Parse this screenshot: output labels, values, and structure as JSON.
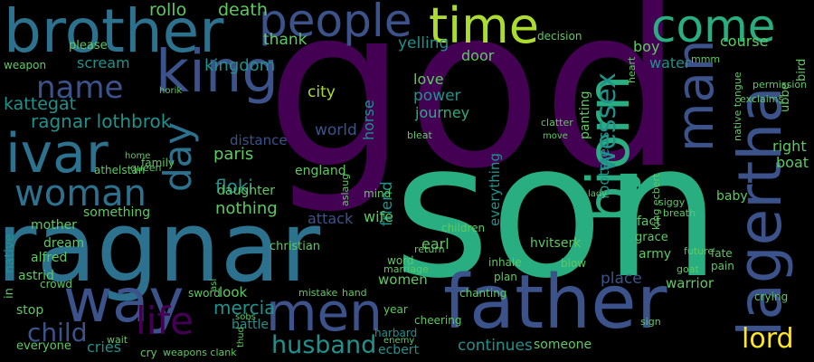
{
  "palette": {
    "background": "#000000",
    "purple": "#440154",
    "indigo": "#3b528b",
    "blue": "#2c728e",
    "teal": "#21918c",
    "green": "#28ae80",
    "lightgreen": "#5ec962",
    "yellowgreen": "#addc30",
    "yellow": "#fde725"
  },
  "words": [
    {
      "text": "god",
      "color": "purple"
    },
    {
      "text": "son",
      "color": "green"
    },
    {
      "text": "ragnar",
      "color": "blue"
    },
    {
      "text": "father",
      "color": "indigo"
    },
    {
      "text": "brother",
      "color": "blue"
    },
    {
      "text": "king",
      "color": "indigo"
    },
    {
      "text": "time",
      "color": "yellowgreen"
    },
    {
      "text": "people",
      "color": "indigo"
    },
    {
      "text": "come",
      "color": "green"
    },
    {
      "text": "ivar",
      "color": "blue"
    },
    {
      "text": "man",
      "color": "indigo"
    },
    {
      "text": "bjorn",
      "color": "green"
    },
    {
      "text": "lagertha",
      "color": "indigo"
    },
    {
      "text": "way",
      "color": "indigo"
    },
    {
      "text": "men",
      "color": "indigo"
    },
    {
      "text": "woman",
      "color": "blue"
    },
    {
      "text": "day",
      "color": "blue"
    },
    {
      "text": "name",
      "color": "indigo"
    },
    {
      "text": "life",
      "color": "purple"
    },
    {
      "text": "husband",
      "color": "teal"
    },
    {
      "text": "lord",
      "color": "yellow"
    },
    {
      "text": "wessex",
      "color": "teal"
    },
    {
      "text": "child",
      "color": "indigo"
    },
    {
      "text": "mercia",
      "color": "teal"
    },
    {
      "text": "floki",
      "color": "teal"
    },
    {
      "text": "ragnar lothbrok",
      "color": "teal"
    },
    {
      "text": "kattegat",
      "color": "teal"
    },
    {
      "text": "nothing",
      "color": "lightgreen"
    },
    {
      "text": "paris",
      "color": "lightgreen"
    },
    {
      "text": "kingdom",
      "color": "teal"
    },
    {
      "text": "world",
      "color": "indigo"
    },
    {
      "text": "city",
      "color": "yellowgreen"
    },
    {
      "text": "death",
      "color": "lightgreen"
    },
    {
      "text": "rollo",
      "color": "lightgreen"
    },
    {
      "text": "thank",
      "color": "lightgreen"
    },
    {
      "text": "yelling",
      "color": "teal"
    },
    {
      "text": "power",
      "color": "teal"
    },
    {
      "text": "love",
      "color": "lightgreen"
    },
    {
      "text": "journey",
      "color": "green"
    },
    {
      "text": "scream",
      "color": "teal"
    },
    {
      "text": "door",
      "color": "lightgreen"
    },
    {
      "text": "water",
      "color": "teal"
    },
    {
      "text": "boy",
      "color": "lightgreen"
    },
    {
      "text": "course",
      "color": "lightgreen"
    },
    {
      "text": "right",
      "color": "lightgreen"
    },
    {
      "text": "boat",
      "color": "lightgreen"
    },
    {
      "text": "friend",
      "color": "teal"
    },
    {
      "text": "horse",
      "color": "teal"
    },
    {
      "text": "footsteps",
      "color": "teal"
    },
    {
      "text": "attack",
      "color": "indigo"
    },
    {
      "text": "wife",
      "color": "lightgreen"
    },
    {
      "text": "everything",
      "color": "teal"
    },
    {
      "text": "distance",
      "color": "indigo"
    },
    {
      "text": "england",
      "color": "lightgreen"
    },
    {
      "text": "family",
      "color": "lightgreen"
    },
    {
      "text": "daughter",
      "color": "lightgreen"
    },
    {
      "text": "mother",
      "color": "lightgreen"
    },
    {
      "text": "something",
      "color": "lightgreen"
    },
    {
      "text": "earl",
      "color": "lightgreen"
    },
    {
      "text": "dream",
      "color": "lightgreen"
    },
    {
      "text": "alfred",
      "color": "lightgreen"
    },
    {
      "text": "astrid",
      "color": "lightgreen"
    },
    {
      "text": "native",
      "color": "teal"
    },
    {
      "text": "christian",
      "color": "lightgreen"
    },
    {
      "text": "women",
      "color": "lightgreen"
    },
    {
      "text": "place",
      "color": "indigo"
    },
    {
      "text": "warrior",
      "color": "lightgreen"
    },
    {
      "text": "army",
      "color": "lightgreen"
    },
    {
      "text": "fact",
      "color": "lightgreen"
    },
    {
      "text": "baby",
      "color": "lightgreen"
    },
    {
      "text": "panting",
      "color": "lightgreen"
    },
    {
      "text": "hvitserk",
      "color": "lightgreen"
    },
    {
      "text": "grace",
      "color": "lightgreen"
    },
    {
      "text": "continues",
      "color": "teal"
    },
    {
      "text": "someone",
      "color": "lightgreen"
    },
    {
      "text": "cries",
      "color": "teal"
    },
    {
      "text": "everyone",
      "color": "lightgreen"
    },
    {
      "text": "look",
      "color": "lightgreen"
    },
    {
      "text": "battle",
      "color": "teal"
    },
    {
      "text": "stop",
      "color": "lightgreen"
    },
    {
      "text": "sword",
      "color": "lightgreen"
    },
    {
      "text": "ecbert",
      "color": "teal"
    },
    {
      "text": "harbard",
      "color": "teal"
    },
    {
      "text": "crying",
      "color": "lightgreen"
    },
    {
      "text": "fate",
      "color": "lightgreen"
    },
    {
      "text": "pain",
      "color": "lightgreen"
    },
    {
      "text": "ubbe",
      "color": "lightgreen"
    },
    {
      "text": "bird",
      "color": "lightgreen"
    },
    {
      "text": "athelstan",
      "color": "lightgreen"
    },
    {
      "text": "please",
      "color": "lightgreen"
    },
    {
      "text": "weapon",
      "color": "lightgreen"
    },
    {
      "text": "horik",
      "color": "lightgreen"
    },
    {
      "text": "mmm",
      "color": "lightgreen"
    },
    {
      "text": "decision",
      "color": "lightgreen"
    },
    {
      "text": "heart",
      "color": "lightgreen"
    },
    {
      "text": "inhale",
      "color": "lightgreen"
    },
    {
      "text": "blow",
      "color": "lightgreen"
    },
    {
      "text": "plan",
      "color": "lightgreen"
    },
    {
      "text": "word",
      "color": "lightgreen"
    },
    {
      "text": "marriage",
      "color": "lightgreen"
    },
    {
      "text": "cheering",
      "color": "lightgreen"
    },
    {
      "text": "year",
      "color": "lightgreen"
    },
    {
      "text": "children",
      "color": "lightgreen"
    },
    {
      "text": "goat",
      "color": "lightgreen"
    },
    {
      "text": "future",
      "color": "lightgreen"
    },
    {
      "text": "siggy",
      "color": "lightgreen"
    },
    {
      "text": "breath",
      "color": "lightgreen"
    },
    {
      "text": "sign",
      "color": "lightgreen"
    },
    {
      "text": "crowd",
      "color": "lightgreen"
    },
    {
      "text": "queen",
      "color": "lightgreen"
    },
    {
      "text": "home",
      "color": "lightgreen"
    },
    {
      "text": "wait",
      "color": "lightgreen"
    },
    {
      "text": "mind",
      "color": "lightgreen"
    },
    {
      "text": "chanting",
      "color": "lightgreen"
    },
    {
      "text": "mistake",
      "color": "lightgreen"
    },
    {
      "text": "hand",
      "color": "lightgreen"
    },
    {
      "text": "enemy",
      "color": "lightgreen"
    },
    {
      "text": "permission",
      "color": "lightgreen"
    },
    {
      "text": "exclaims",
      "color": "lightgreen"
    },
    {
      "text": "native tongue",
      "color": "lightgreen"
    },
    {
      "text": "clatter",
      "color": "lightgreen"
    },
    {
      "text": "bleat",
      "color": "lightgreen"
    },
    {
      "text": "move",
      "color": "lightgreen"
    },
    {
      "text": "lady",
      "color": "lightgreen"
    },
    {
      "text": "king ecbert",
      "color": "lightgreen"
    },
    {
      "text": "weapons clank",
      "color": "lightgreen"
    },
    {
      "text": "thud",
      "color": "lightgreen"
    },
    {
      "text": "cry",
      "color": "lightgreen"
    },
    {
      "text": "return",
      "color": "lightgreen"
    },
    {
      "text": "asi",
      "color": "lightgreen"
    },
    {
      "text": "sobs",
      "color": "lightgreen"
    },
    {
      "text": "aslaug",
      "color": "lightgreen"
    },
    {
      "text": "in",
      "color": "lightgreen"
    }
  ]
}
